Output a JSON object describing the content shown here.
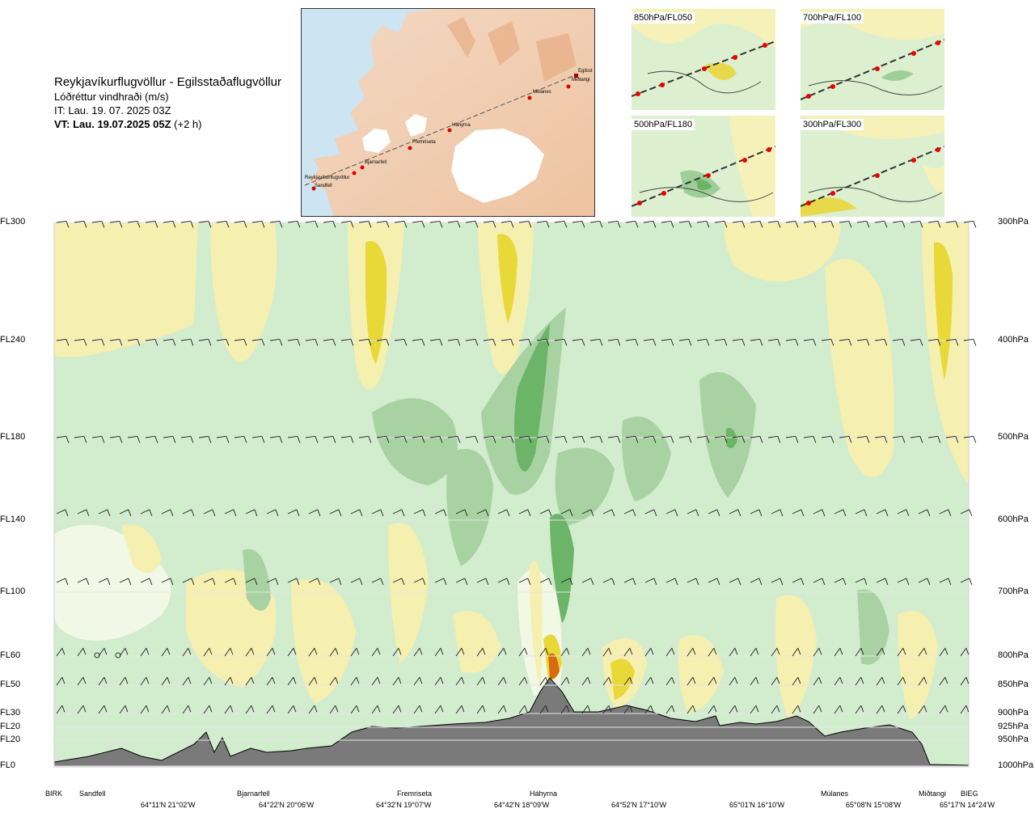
{
  "header": {
    "route": "Reykjavíkurflugvöllur - Egilsstaðaflugvöllur",
    "variable": "Lóðréttur vindhraði (m/s)",
    "init_time": "IT: Lau. 19. 07. 2025 03Z",
    "valid_time_bold": "VT: Lau. 19.07.2025 05Z",
    "valid_offset": " (+2 h)"
  },
  "route_map": {
    "waypoints": [
      {
        "name": "Reykjavíkurflugvöllur"
      },
      {
        "name": "Sandfell"
      },
      {
        "name": "Bjarnarfell"
      },
      {
        "name": "Fremriseta"
      },
      {
        "name": "Háhyrna"
      },
      {
        "name": "Múlanes"
      },
      {
        "name": "Miðtangi"
      },
      {
        "name": "Egilsst"
      }
    ]
  },
  "mini_maps": [
    {
      "label": "850hPa/FL050"
    },
    {
      "label": "700hPa/FL100"
    },
    {
      "label": "500hPa/FL180"
    },
    {
      "label": "300hPa/FL300"
    }
  ],
  "chart_data": {
    "type": "heatmap",
    "description_variable": "vertical wind speed along route cross-section",
    "levels": [
      {
        "fl": "FL300",
        "hpa": "300hPa"
      },
      {
        "fl": "FL240",
        "hpa": "400hPa"
      },
      {
        "fl": "FL180",
        "hpa": "500hPa"
      },
      {
        "fl": "FL140",
        "hpa": "600hPa"
      },
      {
        "fl": "FL100",
        "hpa": "700hPa"
      },
      {
        "fl": "FL60",
        "hpa": "800hPa"
      },
      {
        "fl": "FL50",
        "hpa": "850hPa"
      },
      {
        "fl": "FL30",
        "hpa": "900hPa"
      },
      {
        "fl": "FL20",
        "hpa": "925hPa"
      },
      {
        "fl": "FL20",
        "hpa": "950hPa"
      },
      {
        "fl": "FL0",
        "hpa": "1000hPa"
      }
    ],
    "route_points": [
      {
        "name": "BIRK"
      },
      {
        "name": "Sandfell"
      },
      {
        "name": "Bjarnarfell"
      },
      {
        "name": "Fremriseta"
      },
      {
        "name": "Háhyrna"
      },
      {
        "name": "Múlanes"
      },
      {
        "name": "Miðtangi"
      },
      {
        "name": "BIEG"
      }
    ],
    "coordinates": [
      "64°11'N 21°02'W",
      "64°22'N 20°06'W",
      "64°32'N 19°07'W",
      "64°42'N 18°09'W",
      "64°52'N 17°10'W",
      "65°01'N 16°10'W",
      "65°08'N 15°08'W",
      "65°17'N 14°24'W"
    ],
    "colors": {
      "downdraft_light": "#f5efb0",
      "downdraft_strong": "#e8d838",
      "downdraft_extreme": "#d86a10",
      "neutral": "#f2f8e6",
      "updraft_light": "#cfeacb",
      "updraft_medium": "#a8d2a2",
      "updraft_strong": "#6cb468",
      "terrain": "#7a7a7a"
    }
  }
}
